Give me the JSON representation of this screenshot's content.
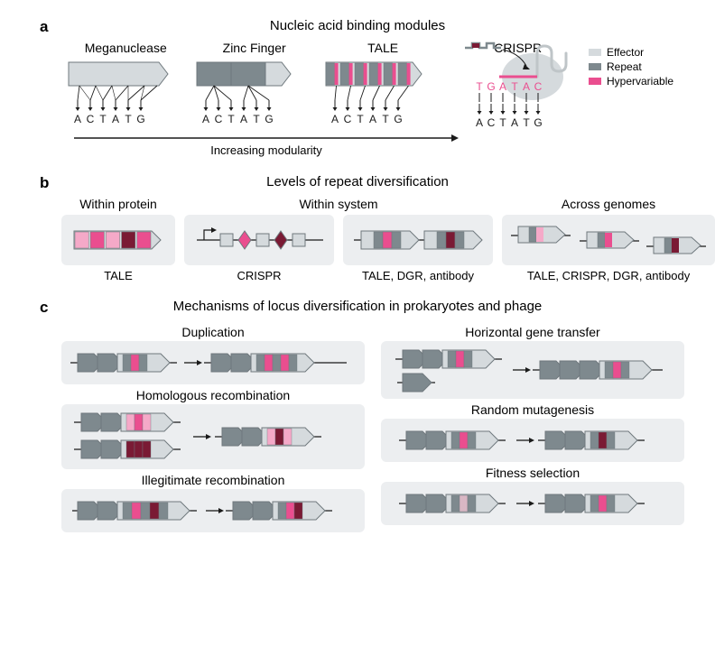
{
  "colors": {
    "bg_box": "#eceef0",
    "effector": "#d5dadd",
    "repeat": "#7e898e",
    "hyper_pink": "#ea4e8f",
    "hyper_light": "#f5a9c8",
    "hyper_dark": "#7a1a34",
    "hyper_faded": "#d9b7c4",
    "line": "#1a1a1a",
    "text": "#1a1a1a",
    "grey_stroke": "#6f787d",
    "crispr_grey": "#bfc5c8"
  },
  "panelA": {
    "label": "a",
    "title": "Nucleic acid binding modules",
    "modules": [
      "Meganuclease",
      "Zinc Finger",
      "TALE",
      "CRISPR"
    ],
    "dna": [
      "A",
      "C",
      "T",
      "A",
      "T",
      "G"
    ],
    "rna": [
      "T",
      "G",
      "A",
      "T",
      "A",
      "C"
    ],
    "axis": "Increasing modularity",
    "legend": [
      {
        "label": "Effector",
        "color_key": "effector"
      },
      {
        "label": "Repeat",
        "color_key": "repeat"
      },
      {
        "label": "Hypervariable",
        "color_key": "hyper_pink"
      }
    ]
  },
  "panelB": {
    "label": "b",
    "title": "Levels of repeat diversification",
    "levels": [
      {
        "title": "Within protein",
        "caption": "TALE"
      },
      {
        "title": "Within system",
        "caption": "CRISPR"
      },
      {
        "title_blank": true,
        "caption": "TALE, DGR, antibody"
      },
      {
        "title": "Across genomes",
        "caption": "TALE, CRISPR, DGR, antibody"
      }
    ]
  },
  "panelC": {
    "label": "c",
    "title": "Mechanisms of locus diversification in prokaryotes and phage",
    "left": [
      "Duplication",
      "Homologous recombination",
      "Illegitimate recombination"
    ],
    "right": [
      "Horizontal gene transfer",
      "Random mutagenesis",
      "Fitness selection"
    ]
  }
}
